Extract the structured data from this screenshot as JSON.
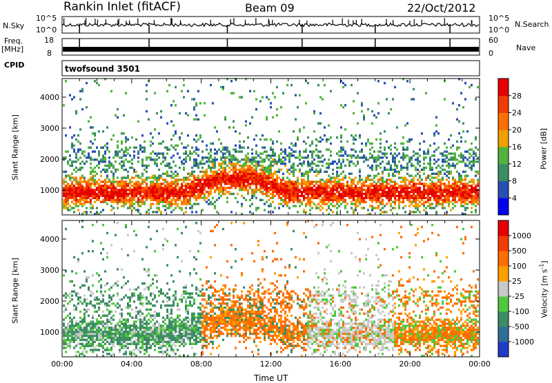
{
  "header": {
    "station": "Rankin Inlet (fitACF)",
    "beam": "Beam 09",
    "date": "22/Oct/2012"
  },
  "noise_panel": {
    "left_label": "N.Sky",
    "left_ticks": [
      "10^5",
      "10^0"
    ],
    "right_label": "N.Search",
    "right_ticks": [
      "10^5",
      "10^0"
    ]
  },
  "freq_panel": {
    "left_label_top": "Freq.",
    "left_label_unit": "[MHz]",
    "left_ticks": [
      "18",
      "8"
    ],
    "right_label": "Nave",
    "right_ticks": [
      "60",
      "0"
    ]
  },
  "cpid_panel": {
    "label": "CPID",
    "value": "twofsound 3501"
  },
  "chart_data": [
    {
      "type": "heatmap",
      "name": "power",
      "ylabel": "Slant Range [km]",
      "yticks": [
        1000,
        2000,
        3000,
        4000
      ],
      "ylim": [
        200,
        4600
      ],
      "xlim": [
        0,
        24
      ],
      "colorbar": {
        "label": "Power [dB]",
        "ticks": [
          "4",
          "8",
          "12",
          "16",
          "20",
          "24",
          "28"
        ],
        "colors": [
          "#0000f0",
          "#2850b4",
          "#3c8c64",
          "#50b43c",
          "#f0a000",
          "#ff6e00",
          "#f03c00",
          "#e60000"
        ]
      }
    },
    {
      "type": "heatmap",
      "name": "velocity",
      "ylabel": "Slant Range [km]",
      "yticks": [
        1000,
        2000,
        3000,
        4000
      ],
      "ylim": [
        200,
        4600
      ],
      "xlim": [
        0,
        24
      ],
      "colorbar": {
        "label": "Velocity [m s-1]",
        "ticks": [
          "1000",
          "500",
          "100",
          "25",
          "-25",
          "-100",
          "-500",
          "-1000"
        ],
        "colors": [
          "#1e3cc8",
          "#2e6e9a",
          "#3c8c64",
          "#50c83c",
          "#c8c8c8",
          "#ffa000",
          "#ff6e00",
          "#f03c00",
          "#e60000"
        ]
      }
    }
  ],
  "time_axis": {
    "ticks": [
      "00:00",
      "04:00",
      "08:00",
      "12:00",
      "16:00",
      "20:00",
      "00:00"
    ],
    "xlabel": "Time UT"
  }
}
